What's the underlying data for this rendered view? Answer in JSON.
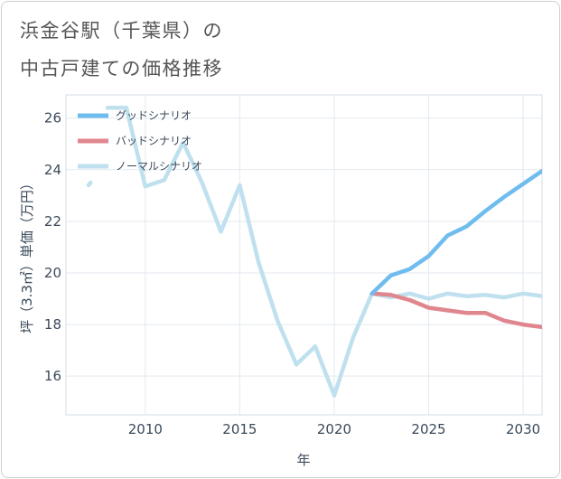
{
  "header": {
    "title_line1": "浜金谷駅（千葉県）の",
    "title_line2": "中古戸建ての価格推移"
  },
  "chart_data": {
    "type": "line",
    "title": "浜金谷駅（千葉県）の中古戸建ての価格推移",
    "xlabel": "年",
    "ylabel": "坪（3.3㎡）単価（万円）",
    "xlim": [
      2005.8,
      2031.0
    ],
    "ylim": [
      14.5,
      26.9
    ],
    "xticks": [
      2010,
      2015,
      2020,
      2025,
      2030
    ],
    "yticks": [
      16,
      18,
      20,
      22,
      24,
      26
    ],
    "grid": true,
    "legend_position": "top-left",
    "series": [
      {
        "name": "グッドシナリオ",
        "color": "#6fbcee",
        "x": [
          2022,
          2023,
          2024,
          2025,
          2026,
          2027,
          2028,
          2029,
          2030,
          2031
        ],
        "y": [
          19.2,
          19.9,
          20.15,
          20.65,
          21.45,
          21.8,
          22.4,
          22.95,
          23.45,
          23.95
        ]
      },
      {
        "name": "バッドシナリオ",
        "color": "#e0868e",
        "x": [
          2022,
          2023,
          2024,
          2025,
          2026,
          2027,
          2028,
          2029,
          2030,
          2031
        ],
        "y": [
          19.2,
          19.15,
          18.95,
          18.65,
          18.55,
          18.45,
          18.45,
          18.15,
          18.0,
          17.9
        ]
      },
      {
        "name": "ノーマルシナリオ",
        "color": "#bfe0ee",
        "segments": [
          {
            "x": [
              2007,
              2007.1
            ],
            "y": [
              23.4,
              23.5
            ]
          },
          {
            "x": [
              2008,
              2009,
              2010,
              2011,
              2012,
              2013,
              2014,
              2015,
              2016,
              2017,
              2018,
              2019,
              2020,
              2021,
              2022,
              2023,
              2024,
              2025,
              2026,
              2027,
              2028,
              2029,
              2030,
              2031
            ],
            "y": [
              26.4,
              26.4,
              23.35,
              23.6,
              25.05,
              23.5,
              21.6,
              23.4,
              20.4,
              18.15,
              16.45,
              17.15,
              15.25,
              17.5,
              19.2,
              19.05,
              19.2,
              19.0,
              19.2,
              19.1,
              19.15,
              19.05,
              19.2,
              19.1
            ]
          }
        ]
      }
    ]
  }
}
